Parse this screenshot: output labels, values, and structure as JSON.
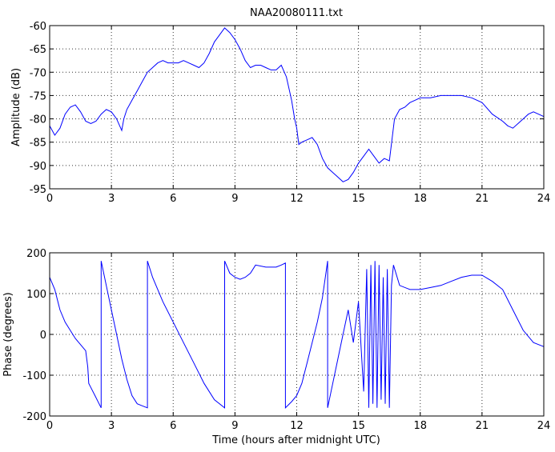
{
  "chart_data": [
    {
      "type": "line",
      "title": "NAA20080111.txt",
      "xlabel": "",
      "ylabel": "Amplitude (dB)",
      "xlim": [
        0,
        24
      ],
      "ylim": [
        -95,
        -60
      ],
      "xticks": [
        "0",
        "3",
        "6",
        "9",
        "12",
        "15",
        "18",
        "21",
        "24"
      ],
      "yticks": [
        "-60",
        "-65",
        "-70",
        "-75",
        "-80",
        "-85",
        "-90",
        "-95"
      ],
      "grid": true,
      "line_color": "#0000ff",
      "series": [
        {
          "x": [
            0,
            0.25,
            0.5,
            0.75,
            1.0,
            1.25,
            1.5,
            1.75,
            2.0,
            2.25,
            2.5,
            2.75,
            3.0,
            3.25,
            3.5,
            3.6,
            3.75,
            4.0,
            4.25,
            4.5,
            4.75,
            5.0,
            5.25,
            5.5,
            5.75,
            6.0,
            6.25,
            6.5,
            6.75,
            7.0,
            7.25,
            7.5,
            7.75,
            8.0,
            8.25,
            8.5,
            8.75,
            9.0,
            9.25,
            9.5,
            9.75,
            10.0,
            10.25,
            10.5,
            10.75,
            11.0,
            11.25,
            11.5,
            11.75,
            11.9,
            12.0,
            12.1,
            12.25,
            12.5,
            12.75,
            13.0,
            13.25,
            13.5,
            13.75,
            14.0,
            14.25,
            14.5,
            14.75,
            15.0,
            15.25,
            15.5,
            15.75,
            16.0,
            16.25,
            16.5,
            16.75,
            17.0,
            17.25,
            17.5,
            17.75,
            18.0,
            18.5,
            19.0,
            19.5,
            20.0,
            20.5,
            21.0,
            21.5,
            22.0,
            22.25,
            22.5,
            22.75,
            23.0,
            23.25,
            23.5,
            24.0
          ],
          "y": [
            -81.5,
            -83.5,
            -82,
            -79,
            -77.5,
            -77,
            -78.5,
            -80.5,
            -81,
            -80.5,
            -79,
            -78,
            -78.5,
            -80,
            -82.5,
            -80,
            -78,
            -76,
            -74,
            -72,
            -70,
            -69,
            -68,
            -67.5,
            -68,
            -68,
            -68,
            -67.5,
            -68,
            -68.5,
            -69,
            -68,
            -66,
            -63.5,
            -62,
            -60.5,
            -61.5,
            -63,
            -65,
            -67.5,
            -69,
            -68.5,
            -68.5,
            -69,
            -69.5,
            -69.5,
            -68.5,
            -71,
            -76,
            -80,
            -82,
            -85.5,
            -85,
            -84.5,
            -84,
            -85.5,
            -88.5,
            -90.5,
            -91.5,
            -92.5,
            -93.5,
            -93,
            -91.5,
            -89.5,
            -88,
            -86.5,
            -88,
            -89.5,
            -88.5,
            -89,
            -80,
            -78,
            -77.5,
            -76.5,
            -76,
            -75.5,
            -75.5,
            -75,
            -75,
            -75,
            -75.5,
            -76.5,
            -79,
            -80.5,
            -81.5,
            -82,
            -81,
            -80,
            -79,
            -78.5,
            -79.5
          ]
        }
      ]
    },
    {
      "type": "line",
      "title": "",
      "xlabel": "Time (hours after midnight UTC)",
      "ylabel": "Phase (degrees)",
      "xlim": [
        0,
        24
      ],
      "ylim": [
        -200,
        200
      ],
      "xticks": [
        "0",
        "3",
        "6",
        "9",
        "12",
        "15",
        "18",
        "21",
        "24"
      ],
      "yticks": [
        "200",
        "100",
        "0",
        "-100",
        "-200"
      ],
      "grid": true,
      "line_color": "#0000ff",
      "series": [
        {
          "x": [
            0,
            0.25,
            0.5,
            0.75,
            1.0,
            1.25,
            1.5,
            1.75,
            1.85,
            1.9,
            2.0,
            2.2,
            2.4,
            2.5,
            2.5,
            2.75,
            3.0,
            3.25,
            3.5,
            3.75,
            4.0,
            4.25,
            4.5,
            4.75,
            4.75,
            5.0,
            5.5,
            6.0,
            6.5,
            7.0,
            7.5,
            8.0,
            8.5,
            8.5,
            8.75,
            9.0,
            9.25,
            9.5,
            9.75,
            10.0,
            10.5,
            11.0,
            11.25,
            11.45,
            11.45,
            11.75,
            12.0,
            12.25,
            12.5,
            12.75,
            13.0,
            13.25,
            13.5,
            13.5,
            13.75,
            14.0,
            14.25,
            14.5,
            14.75,
            15.0,
            15.25,
            15.4,
            15.5,
            15.6,
            15.7,
            15.8,
            15.9,
            16.0,
            16.1,
            16.2,
            16.3,
            16.4,
            16.5,
            16.6,
            16.7,
            17.0,
            17.5,
            18.0,
            18.5,
            19.0,
            19.5,
            20.0,
            20.5,
            21.0,
            21.5,
            22.0,
            22.5,
            23.0,
            23.5,
            24.0
          ],
          "y": [
            140,
            110,
            60,
            30,
            10,
            -10,
            -25,
            -40,
            -80,
            -120,
            -130,
            -150,
            -170,
            -180,
            180,
            120,
            60,
            0,
            -60,
            -110,
            -150,
            -170,
            -175,
            -180,
            180,
            140,
            80,
            30,
            -20,
            -70,
            -120,
            -160,
            -180,
            180,
            150,
            140,
            135,
            140,
            150,
            170,
            165,
            165,
            170,
            175,
            -180,
            -165,
            -150,
            -120,
            -70,
            -20,
            30,
            90,
            180,
            -180,
            -120,
            -60,
            0,
            60,
            -20,
            80,
            -140,
            160,
            -180,
            170,
            -170,
            180,
            -180,
            170,
            -160,
            140,
            -170,
            160,
            -180,
            120,
            170,
            120,
            110,
            110,
            115,
            120,
            130,
            140,
            145,
            145,
            130,
            110,
            60,
            10,
            -20,
            -30
          ]
        }
      ]
    }
  ]
}
